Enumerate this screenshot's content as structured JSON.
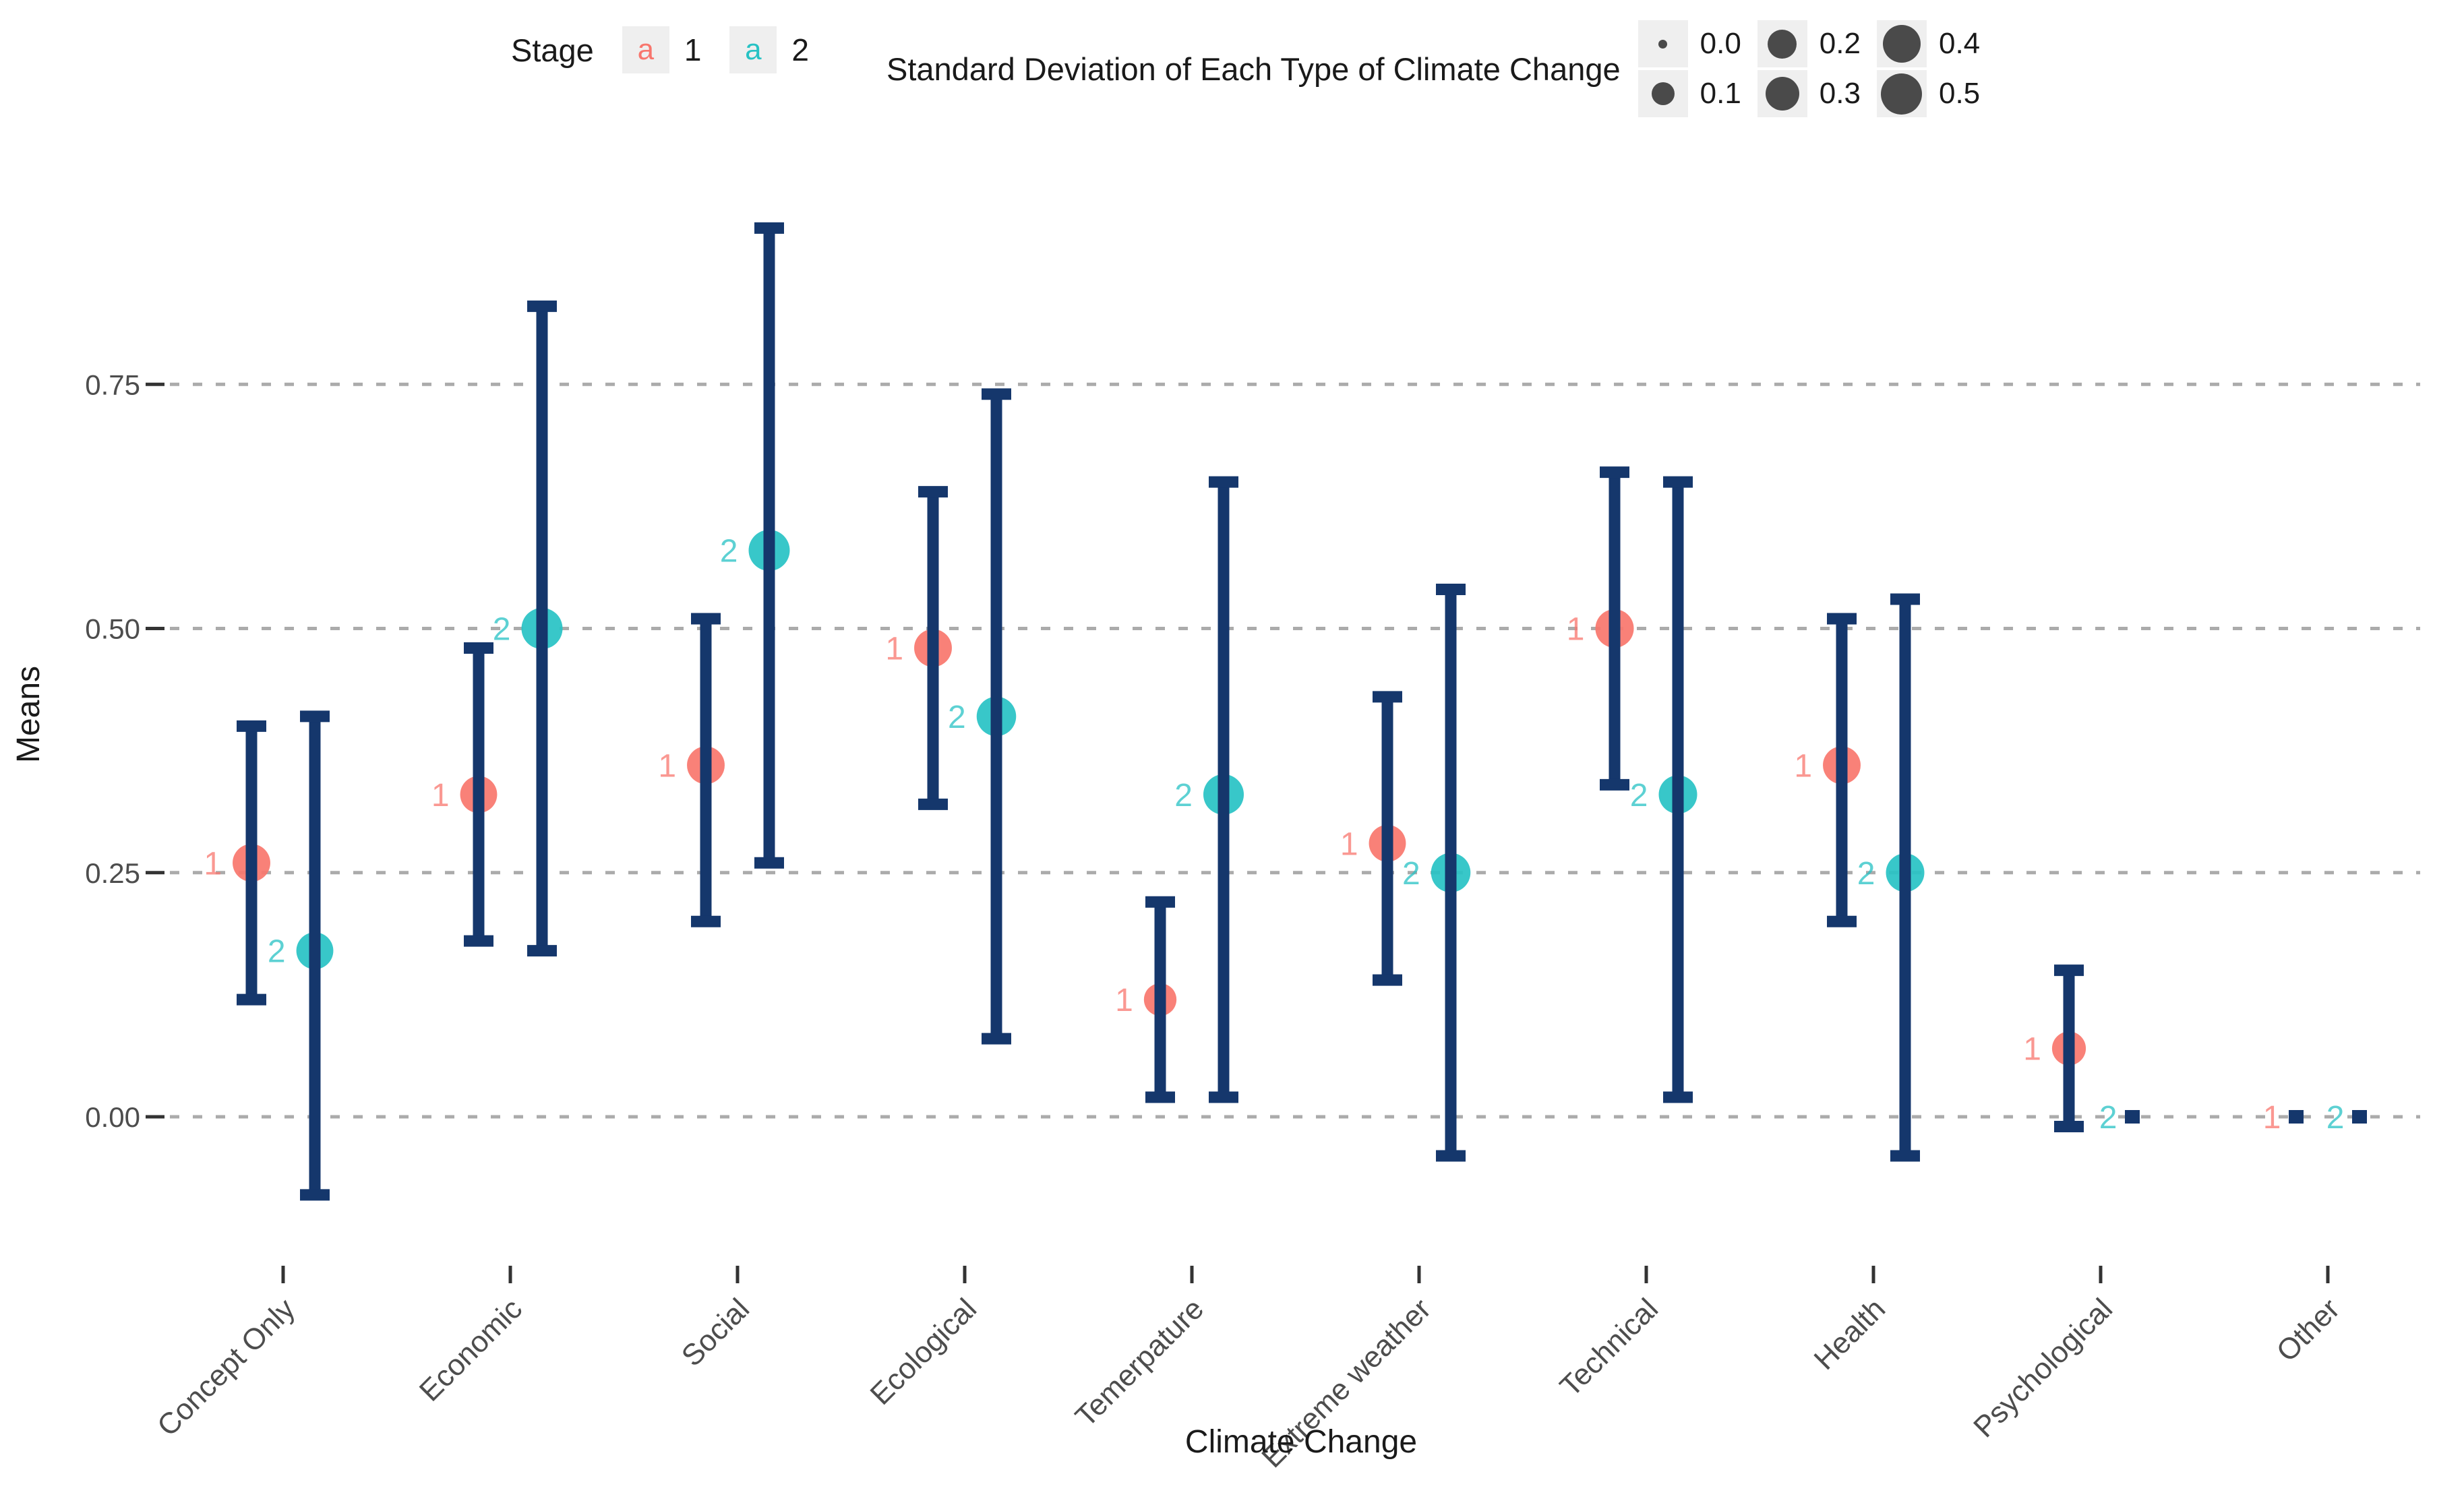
{
  "colors": {
    "stage1": "#F8766D",
    "stage2": "#27C2C4",
    "errorbar": "#15376C",
    "gridline": "#ABABAB",
    "axis_text": "#4D4D4D",
    "title_text": "#1A1A1A",
    "size_dot": "#4A4A4A",
    "legend_key_bg": "#EFEFEF"
  },
  "legend_stage": {
    "title": "Stage",
    "items": [
      {
        "label": "1",
        "key_glyph": "a",
        "color": "#F8766D"
      },
      {
        "label": "2",
        "key_glyph": "a",
        "color": "#27C2C4"
      }
    ]
  },
  "legend_size": {
    "title": "Standard Deviation of Each Type of Climate Change",
    "items": [
      {
        "label": "0.0",
        "sd": 0.0
      },
      {
        "label": "0.1",
        "sd": 0.1
      },
      {
        "label": "0.2",
        "sd": 0.2
      },
      {
        "label": "0.3",
        "sd": 0.3
      },
      {
        "label": "0.4",
        "sd": 0.4
      },
      {
        "label": "0.5",
        "sd": 0.5
      }
    ]
  },
  "chart_data": {
    "type": "scatter",
    "title": "",
    "xlabel": "Climate Change",
    "ylabel": "Means",
    "ylim": [
      -0.12,
      0.95
    ],
    "grid": "horizontal-dashed",
    "legend_position": "top",
    "yticks": [
      {
        "value": 0.0,
        "label": "0.00"
      },
      {
        "value": 0.25,
        "label": "0.25"
      },
      {
        "value": 0.5,
        "label": "0.50"
      },
      {
        "value": 0.75,
        "label": "0.75"
      }
    ],
    "categories": [
      "Concept Only",
      "Economic",
      "Social",
      "Ecological",
      "Temerpature",
      "Extreme weather",
      "Technical",
      "Health",
      "Psychological",
      "Other"
    ],
    "series": [
      {
        "name": "1",
        "color": "#F8766D",
        "points": [
          {
            "category": "Concept Only",
            "mean": 0.26,
            "lower": 0.12,
            "upper": 0.4,
            "sd": 0.4
          },
          {
            "category": "Economic",
            "mean": 0.33,
            "lower": 0.18,
            "upper": 0.48,
            "sd": 0.38
          },
          {
            "category": "Social",
            "mean": 0.36,
            "lower": 0.2,
            "upper": 0.51,
            "sd": 0.4
          },
          {
            "category": "Ecological",
            "mean": 0.48,
            "lower": 0.32,
            "upper": 0.64,
            "sd": 0.4
          },
          {
            "category": "Temerpature",
            "mean": 0.12,
            "lower": 0.02,
            "upper": 0.22,
            "sd": 0.27
          },
          {
            "category": "Extreme weather",
            "mean": 0.28,
            "lower": 0.14,
            "upper": 0.43,
            "sd": 0.38
          },
          {
            "category": "Technical",
            "mean": 0.5,
            "lower": 0.34,
            "upper": 0.66,
            "sd": 0.42
          },
          {
            "category": "Health",
            "mean": 0.36,
            "lower": 0.2,
            "upper": 0.51,
            "sd": 0.4
          },
          {
            "category": "Psychological",
            "mean": 0.07,
            "lower": -0.01,
            "upper": 0.15,
            "sd": 0.3
          },
          {
            "category": "Other",
            "mean": 0.0,
            "lower": 0.0,
            "upper": 0.0,
            "sd": 0.0
          }
        ]
      },
      {
        "name": "2",
        "color": "#27C2C4",
        "points": [
          {
            "category": "Concept Only",
            "mean": 0.17,
            "lower": -0.08,
            "upper": 0.41,
            "sd": 0.38
          },
          {
            "category": "Economic",
            "mean": 0.5,
            "lower": 0.17,
            "upper": 0.83,
            "sd": 0.5
          },
          {
            "category": "Social",
            "mean": 0.58,
            "lower": 0.26,
            "upper": 0.91,
            "sd": 0.5
          },
          {
            "category": "Ecological",
            "mean": 0.41,
            "lower": 0.08,
            "upper": 0.74,
            "sd": 0.45
          },
          {
            "category": "Temerpature",
            "mean": 0.33,
            "lower": 0.02,
            "upper": 0.65,
            "sd": 0.48
          },
          {
            "category": "Extreme weather",
            "mean": 0.25,
            "lower": -0.04,
            "upper": 0.54,
            "sd": 0.45
          },
          {
            "category": "Technical",
            "mean": 0.33,
            "lower": 0.02,
            "upper": 0.65,
            "sd": 0.42
          },
          {
            "category": "Health",
            "mean": 0.25,
            "lower": -0.04,
            "upper": 0.53,
            "sd": 0.42
          },
          {
            "category": "Psychological",
            "mean": 0.0,
            "lower": 0.0,
            "upper": 0.0,
            "sd": 0.0
          },
          {
            "category": "Other",
            "mean": 0.0,
            "lower": 0.0,
            "upper": 0.0,
            "sd": 0.0
          }
        ]
      }
    ]
  }
}
